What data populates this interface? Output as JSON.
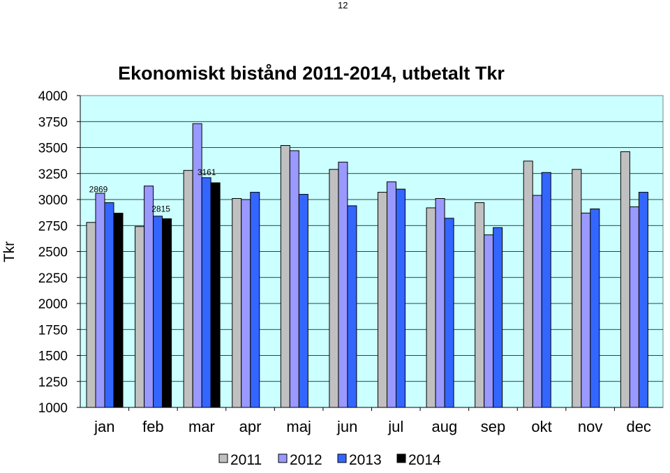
{
  "page_number": "12",
  "chart_data": {
    "type": "bar",
    "title": "Ekonomiskt bistånd 2011-2014, utbetalt Tkr",
    "ylabel": "Tkr",
    "xlabel": "",
    "ylim": [
      1000,
      4000
    ],
    "yticks": [
      1000,
      1250,
      1500,
      1750,
      2000,
      2250,
      2500,
      2750,
      3000,
      3250,
      3500,
      3750,
      4000
    ],
    "categories": [
      "jan",
      "feb",
      "mar",
      "apr",
      "maj",
      "jun",
      "jul",
      "aug",
      "sep",
      "okt",
      "nov",
      "dec"
    ],
    "series": [
      {
        "name": "2011",
        "color": "#c0c0c0",
        "values": [
          2780,
          2740,
          3280,
          3010,
          3520,
          3290,
          3070,
          2920,
          2970,
          3370,
          3290,
          3460
        ]
      },
      {
        "name": "2012",
        "color": "#9999ff",
        "values": [
          3060,
          3130,
          3730,
          3000,
          3470,
          3360,
          3170,
          3010,
          2660,
          3040,
          2870,
          2930
        ]
      },
      {
        "name": "2013",
        "color": "#3366ff",
        "values": [
          2970,
          2840,
          3210,
          3070,
          3050,
          2940,
          3100,
          2820,
          2730,
          3260,
          2910,
          3070
        ]
      },
      {
        "name": "2014",
        "color": "#000000",
        "values": [
          2869,
          2815,
          3161,
          null,
          null,
          null,
          null,
          null,
          null,
          null,
          null,
          null
        ]
      }
    ],
    "data_labels": [
      {
        "text": "2869",
        "category": "jan",
        "series": "2014"
      },
      {
        "text": "2815",
        "category": "feb",
        "series": "2014"
      },
      {
        "text": "3161",
        "category": "mar",
        "series": "2014"
      }
    ],
    "plot_background": "#ccffff",
    "grid": "horizontal",
    "legend_position": "bottom"
  }
}
